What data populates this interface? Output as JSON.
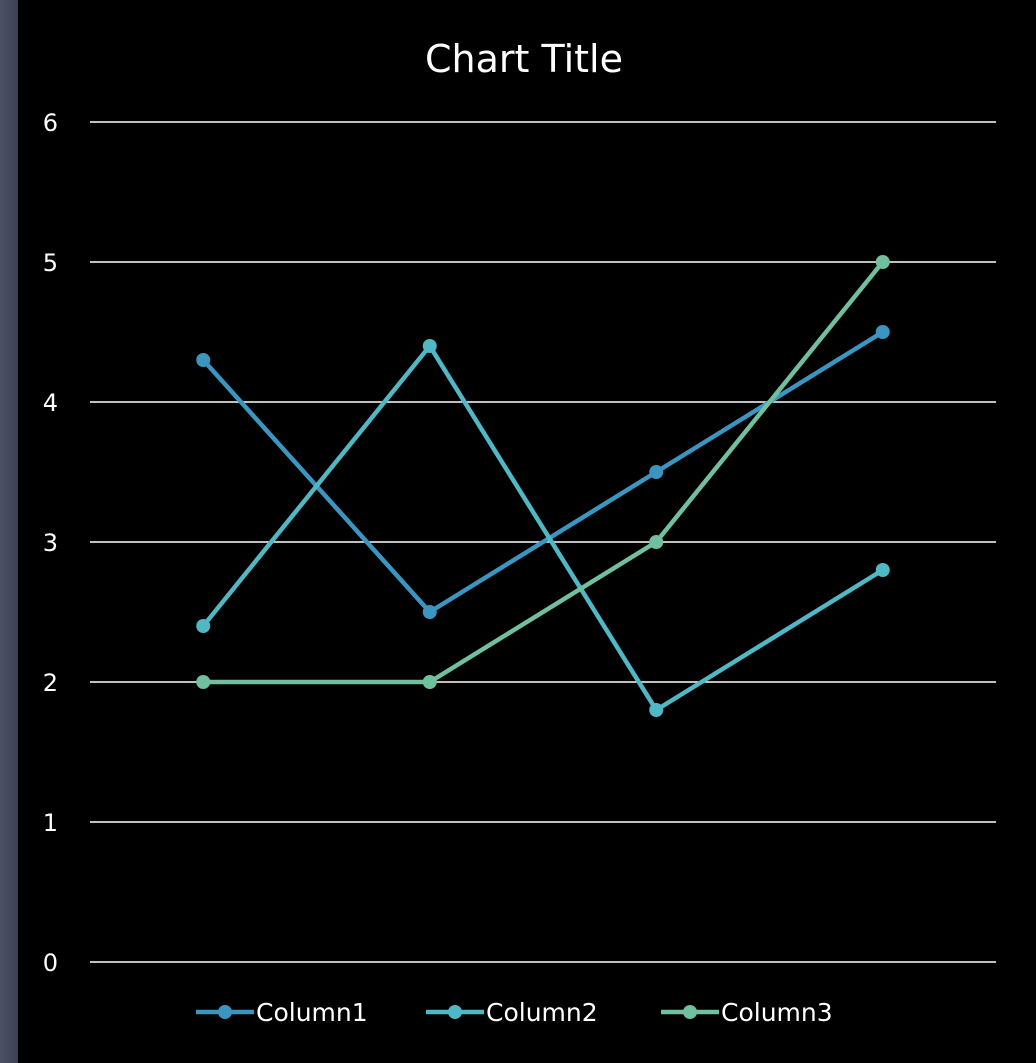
{
  "chart_data": {
    "type": "line",
    "title": "Chart Title",
    "xlabel": "",
    "ylabel": "",
    "categories": [
      "",
      "",
      "",
      ""
    ],
    "ylim": [
      0,
      6
    ],
    "yticks": [
      0,
      1,
      2,
      3,
      4,
      5,
      6
    ],
    "yticks_labels": [
      "0",
      "1",
      "2",
      "3",
      "4",
      "5",
      "6"
    ],
    "grid": true,
    "legend_position": "bottom",
    "series": [
      {
        "name": "Column1",
        "values": [
          4.3,
          2.5,
          3.5,
          4.5
        ],
        "color": "#3a96c0"
      },
      {
        "name": "Column2",
        "values": [
          2.4,
          4.4,
          1.8,
          2.8
        ],
        "color": "#4fb8c4"
      },
      {
        "name": "Column3",
        "values": [
          2.0,
          2.0,
          3.0,
          5.0
        ],
        "color": "#70c0a0"
      }
    ]
  },
  "background": {
    "chart": "#000000",
    "frame": "#444a60"
  }
}
